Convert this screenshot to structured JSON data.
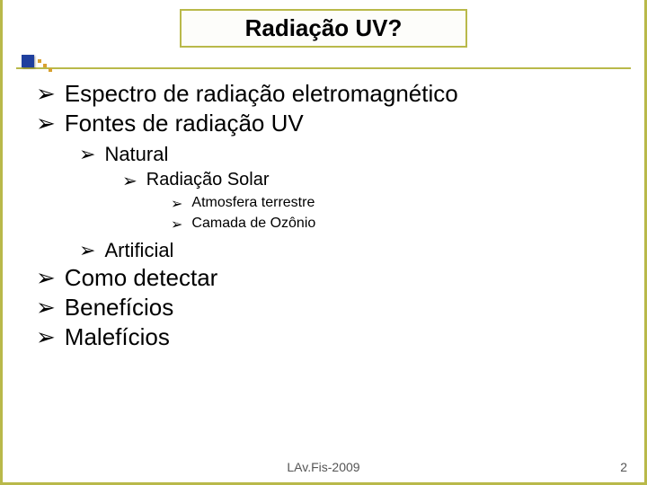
{
  "title": "Radiação UV?",
  "bullets": {
    "l1_0": "Espectro de radiação eletromagnético",
    "l1_1": "Fontes de radiação UV",
    "l2_0": "Natural",
    "l3_0": "Radiação Solar",
    "l4_0": "Atmosfera terrestre",
    "l4_1": "Camada de Ozônio",
    "l2_1": "Artificial",
    "l1_2": "Como detectar",
    "l1_3": "Benefícios",
    "l1_4": "Malefícios"
  },
  "glyph": "➢",
  "footer": "LAv.Fis-2009",
  "page": "2"
}
